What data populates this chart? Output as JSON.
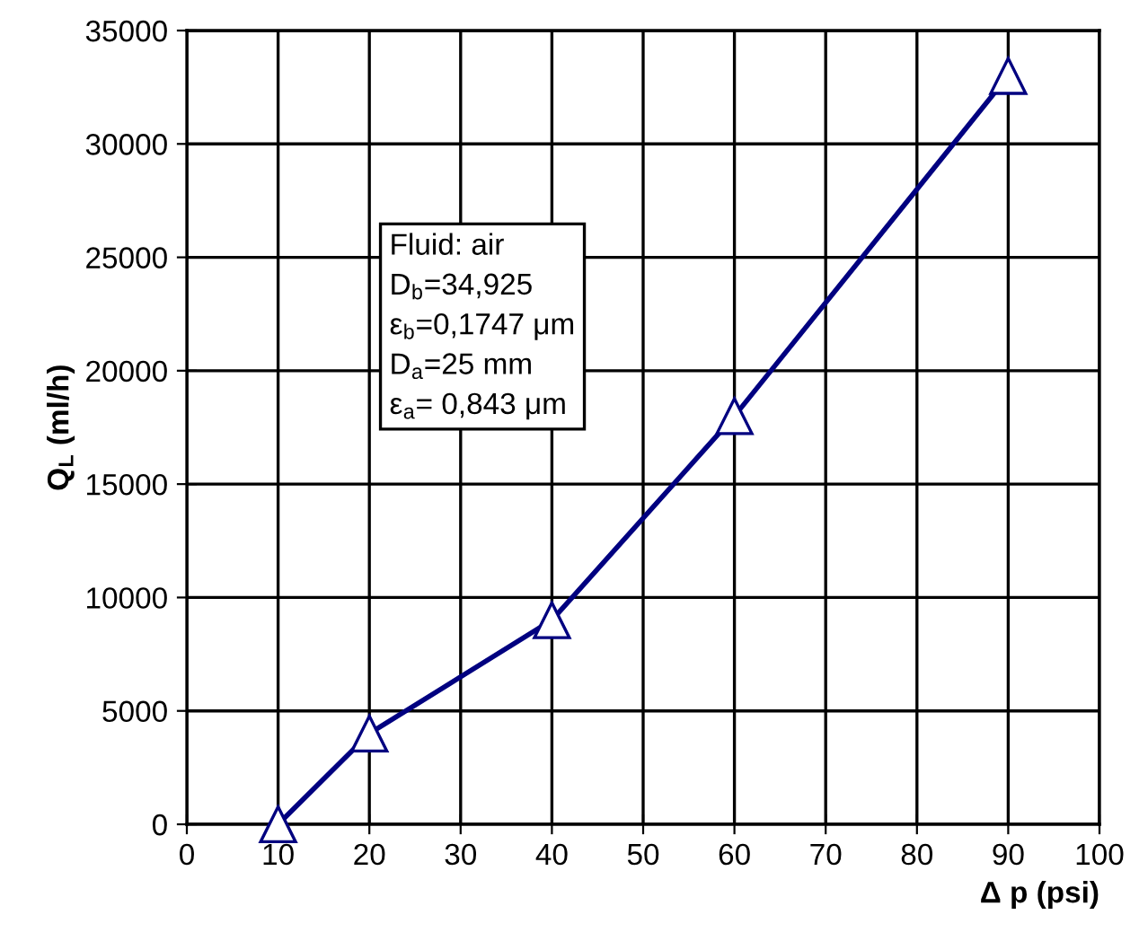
{
  "chart_data": {
    "type": "line",
    "xlabel": "Δ p (psi)",
    "ylabel": "Q$_{L}$ (ml/h)",
    "series": [
      {
        "color": "#000080",
        "x": [
          10,
          20,
          40,
          60,
          90
        ],
        "values": [
          0,
          4000,
          9000,
          18000,
          33000
        ]
      }
    ],
    "xlim": [
      0,
      100
    ],
    "xticks": [
      0,
      10,
      20,
      30,
      40,
      50,
      60,
      70,
      80,
      90,
      100
    ],
    "ylim": [
      0,
      35000
    ],
    "yticks": [
      0,
      5000,
      10000,
      15000,
      20000,
      25000,
      30000,
      35000
    ],
    "grid": true,
    "marker": "triangle",
    "line_style": "solid",
    "annotations": [
      "Fluid: air",
      "D$_{b}$=34,925",
      "ε$_{b}$=0,1747 μm",
      "D$_{a}$=25 mm",
      "ε$_{a}$= 0,843 μm"
    ]
  }
}
